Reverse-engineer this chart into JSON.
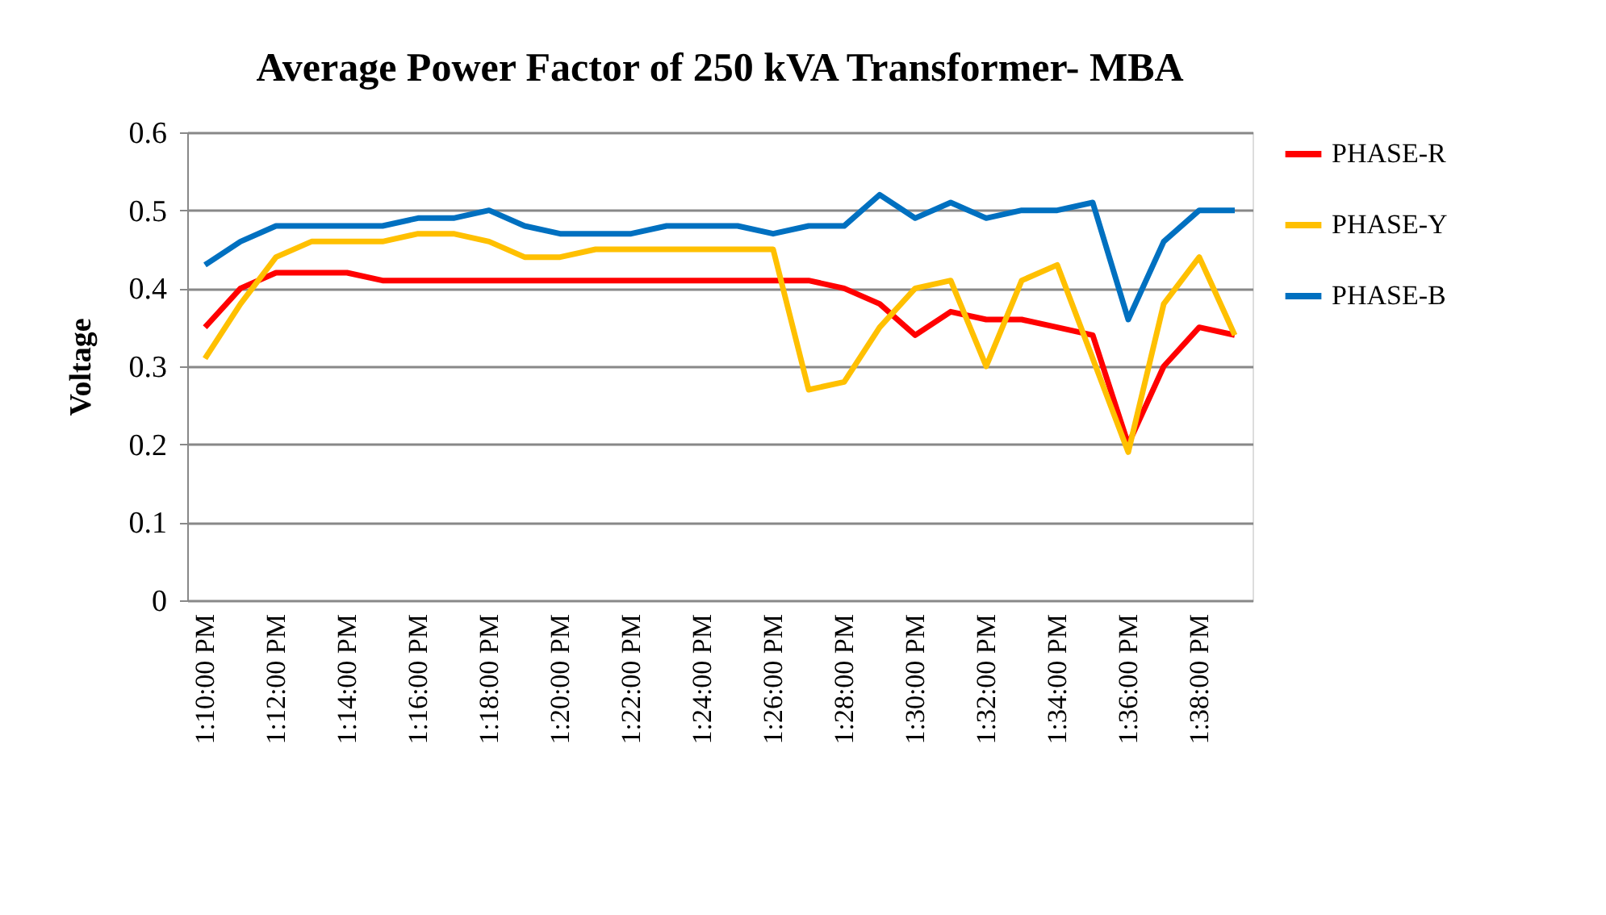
{
  "chart_data": {
    "type": "line",
    "title": "Average Power Factor of 250 kVA Transformer- MBA",
    "ylabel": "Voltage",
    "categories": [
      "1:10:00 PM",
      null,
      "1:12:00 PM",
      null,
      "1:14:00 PM",
      null,
      "1:16:00 PM",
      null,
      "1:18:00 PM",
      null,
      "1:20:00 PM",
      null,
      "1:22:00 PM",
      null,
      "1:24:00 PM",
      null,
      "1:26:00 PM",
      null,
      "1:28:00 PM",
      null,
      "1:30:00 PM",
      null,
      "1:32:00 PM",
      null,
      "1:34:00 PM",
      null,
      "1:36:00 PM",
      null,
      "1:38:00 PM",
      null
    ],
    "series": [
      {
        "name": "PHASE-R",
        "color": "#ff0000",
        "values": [
          0.35,
          0.4,
          0.42,
          0.42,
          0.42,
          0.41,
          0.41,
          0.41,
          0.41,
          0.41,
          0.41,
          0.41,
          0.41,
          0.41,
          0.41,
          0.41,
          0.41,
          0.41,
          0.4,
          0.38,
          0.34,
          0.37,
          0.36,
          0.36,
          0.35,
          0.34,
          0.2,
          0.3,
          0.35,
          0.34
        ]
      },
      {
        "name": "PHASE-Y",
        "color": "#ffc000",
        "values": [
          0.31,
          0.38,
          0.44,
          0.46,
          0.46,
          0.46,
          0.47,
          0.47,
          0.46,
          0.44,
          0.44,
          0.45,
          0.45,
          0.45,
          0.45,
          0.45,
          0.45,
          0.27,
          0.28,
          0.35,
          0.4,
          0.41,
          0.3,
          0.41,
          0.43,
          0.31,
          0.19,
          0.38,
          0.44,
          0.34
        ]
      },
      {
        "name": "PHASE-B",
        "color": "#0070c0",
        "values": [
          0.43,
          0.46,
          0.48,
          0.48,
          0.48,
          0.48,
          0.49,
          0.49,
          0.5,
          0.48,
          0.47,
          0.47,
          0.47,
          0.48,
          0.48,
          0.48,
          0.47,
          0.48,
          0.48,
          0.52,
          0.49,
          0.51,
          0.49,
          0.5,
          0.5,
          0.51,
          0.36,
          0.46,
          0.5,
          0.5
        ]
      }
    ],
    "ylim": [
      0,
      0.6
    ],
    "yticks": [
      0,
      0.1,
      0.2,
      0.3,
      0.4,
      0.5,
      0.6
    ],
    "grid": "y",
    "legend": "right",
    "marker": "none",
    "line_style": "solid"
  }
}
